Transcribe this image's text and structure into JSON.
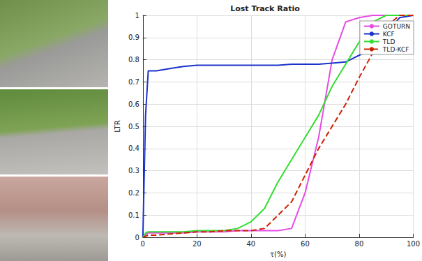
{
  "chart_data": {
    "type": "line",
    "title": "Lost Track Ratio",
    "x_label": "τ(%)",
    "y_label": "LTR",
    "x": [
      0,
      1,
      2,
      5,
      10,
      15,
      20,
      25,
      30,
      35,
      40,
      45,
      50,
      55,
      60,
      65,
      70,
      75,
      80,
      85,
      90,
      95,
      100
    ],
    "series": [
      {
        "name": "GOTURN",
        "color": "#e64ce6",
        "line_style": "solid",
        "values": [
          0,
          0.01,
          0.02,
          0.02,
          0.02,
          0.02,
          0.025,
          0.025,
          0.025,
          0.03,
          0.03,
          0.03,
          0.03,
          0.04,
          0.2,
          0.45,
          0.8,
          0.97,
          0.99,
          1,
          1,
          1,
          1
        ]
      },
      {
        "name": "KCF",
        "color": "#1a33cc",
        "line_style": "solid",
        "values": [
          0,
          0.55,
          0.75,
          0.75,
          0.76,
          0.77,
          0.775,
          0.775,
          0.775,
          0.775,
          0.775,
          0.775,
          0.775,
          0.78,
          0.78,
          0.78,
          0.785,
          0.79,
          0.82,
          0.85,
          0.92,
          0.99,
          1
        ]
      },
      {
        "name": "TLD",
        "color": "#33dd33",
        "line_style": "solid",
        "values": [
          0,
          0.02,
          0.025,
          0.025,
          0.025,
          0.025,
          0.03,
          0.03,
          0.03,
          0.04,
          0.07,
          0.13,
          0.25,
          0.35,
          0.45,
          0.55,
          0.68,
          0.78,
          0.88,
          0.97,
          1,
          1,
          1
        ]
      },
      {
        "name": "TLD-KCF",
        "color": "#cc2200",
        "line_style": "dashed",
        "values": [
          0,
          0.005,
          0.01,
          0.01,
          0.015,
          0.02,
          0.025,
          0.025,
          0.03,
          0.03,
          0.03,
          0.04,
          0.1,
          0.16,
          0.28,
          0.4,
          0.5,
          0.6,
          0.72,
          0.83,
          0.95,
          1,
          1
        ]
      }
    ],
    "xlim": [
      0,
      100
    ],
    "xticks": [
      0,
      20,
      40,
      60,
      80,
      100
    ],
    "ylim": [
      0,
      1
    ],
    "yticks": [
      0,
      0.1,
      0.2,
      0.3,
      0.4,
      0.5,
      0.6,
      0.7,
      0.8,
      0.9,
      1
    ],
    "grid": true,
    "legend": "upper right"
  }
}
